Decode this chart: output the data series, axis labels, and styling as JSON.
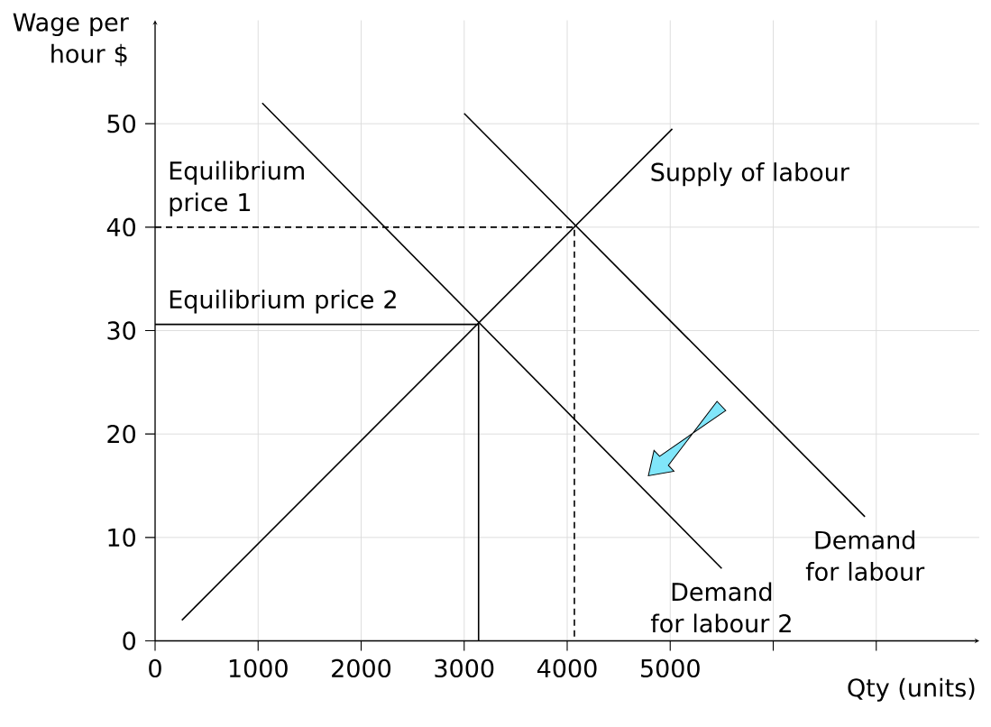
{
  "chart_data": {
    "type": "line",
    "xlabel": "Qty (units)",
    "ylabel": "Wage per hour $",
    "xlim": [
      0,
      8000
    ],
    "ylim": [
      0,
      60
    ],
    "xticks": [
      0,
      1000,
      2000,
      3000,
      4000,
      5000,
      {
        "value": 6000,
        "label": null
      },
      {
        "value": 7000,
        "label": null
      }
    ],
    "yticks": [
      0,
      10,
      20,
      30,
      40,
      50
    ],
    "grid": true,
    "marker": "none",
    "line_style": "solid",
    "series": [
      {
        "name": "Supply of labour",
        "color": "#000000",
        "x": [
          260,
          5020
        ],
        "values": [
          2,
          49.5
        ]
      },
      {
        "name": "Demand for labour",
        "color": "#000000",
        "x": [
          3000,
          6890
        ],
        "values": [
          51,
          12
        ]
      },
      {
        "name": "Demand for labour 2",
        "color": "#000000",
        "x": [
          1040,
          5500
        ],
        "values": [
          52,
          7
        ]
      },
      {
        "color": "#000000",
        "line_style": "dashed",
        "x": [
          0,
          4070,
          4070
        ],
        "values": [
          40,
          40,
          0
        ]
      },
      {
        "color": "#000000",
        "x": [
          0,
          3140,
          3140
        ],
        "values": [
          30.6,
          30.6,
          0
        ]
      }
    ],
    "annotations": [
      {
        "text": "Equilibrium price 1",
        "x": 0,
        "y": 40
      },
      {
        "text": "Equilibrium price 2",
        "x": 0,
        "y": 30.6
      }
    ]
  }
}
